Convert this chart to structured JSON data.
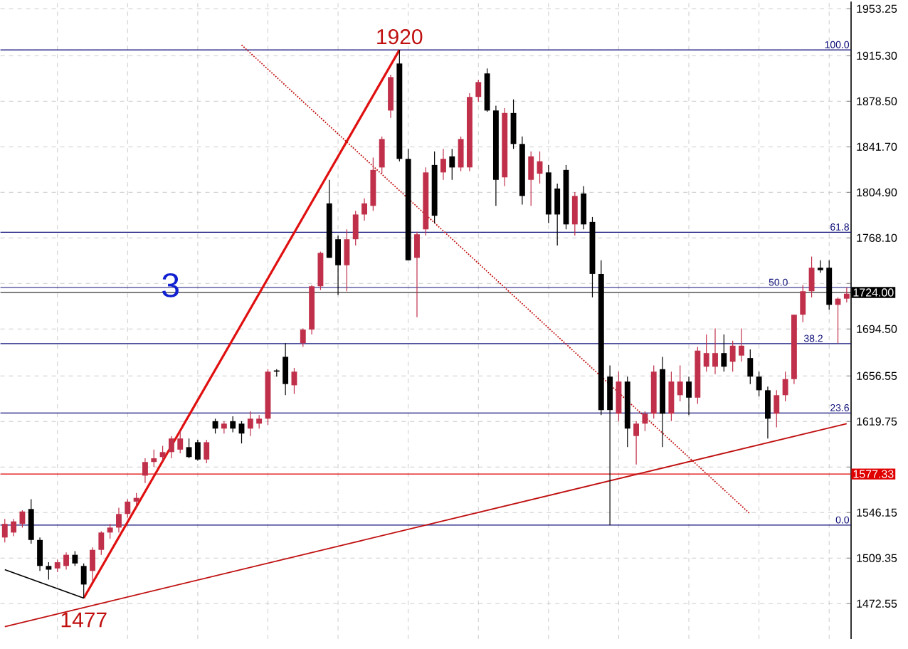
{
  "chart_data": {
    "type": "candlestick",
    "categories": [
      null,
      null,
      null,
      null,
      null,
      null,
      null,
      null,
      null,
      null,
      null,
      null,
      null,
      null,
      null,
      null,
      null,
      null,
      null,
      null,
      null,
      null,
      null,
      null,
      null,
      null,
      null,
      null,
      null,
      null,
      null,
      null,
      null,
      null,
      null,
      null,
      null,
      null,
      null,
      null,
      null,
      null,
      null,
      null,
      null,
      null,
      null,
      null,
      null,
      null,
      null,
      null,
      null,
      null,
      null,
      null,
      null,
      null,
      null,
      null,
      null,
      null,
      null,
      null,
      null,
      null,
      null,
      null,
      null,
      null,
      null,
      null,
      null,
      null,
      null,
      null,
      null,
      null,
      null,
      null,
      null,
      null,
      null,
      null,
      null,
      null,
      null,
      null,
      null,
      null,
      null,
      null,
      null,
      null,
      null,
      null,
      null
    ],
    "ohlc": [
      [
        1526,
        1541,
        1522,
        1537
      ],
      [
        1530,
        1541,
        1527,
        1539
      ],
      [
        1537,
        1548,
        1534,
        1547
      ],
      [
        1549,
        1557,
        1521,
        1524
      ],
      [
        1524,
        1526,
        1499,
        1503
      ],
      [
        1503,
        1506,
        1492,
        1500
      ],
      [
        1501,
        1508,
        1498,
        1506
      ],
      [
        1503,
        1514,
        1500,
        1512
      ],
      [
        1512,
        1515,
        1503,
        1505
      ],
      [
        1503,
        1505,
        1477,
        1488
      ],
      [
        1499,
        1518,
        1490,
        1516
      ],
      [
        1516,
        1531,
        1512,
        1530
      ],
      [
        1530,
        1537,
        1525,
        1534
      ],
      [
        1534,
        1550,
        1530,
        1545
      ],
      [
        1545,
        1557,
        1542,
        1555
      ],
      [
        1555,
        1562,
        1550,
        1558
      ],
      [
        1576,
        1590,
        1570,
        1587
      ],
      [
        1587,
        1597,
        1583,
        1590
      ],
      [
        1591,
        1600,
        1588,
        1595
      ],
      [
        1595,
        1608,
        1590,
        1606
      ],
      [
        1597,
        1612,
        1594,
        1606
      ],
      [
        1599,
        1606,
        1590,
        1591
      ],
      [
        1603,
        1605,
        1588,
        1589
      ],
      [
        1589,
        1605,
        1586,
        1603
      ],
      [
        1620,
        1622,
        1610,
        1614
      ],
      [
        1614,
        1620,
        1610,
        1618
      ],
      [
        1620,
        1624,
        1611,
        1614
      ],
      [
        1618,
        1620,
        1602,
        1610
      ],
      [
        1614,
        1628,
        1608,
        1622
      ],
      [
        1618,
        1625,
        1614,
        1622
      ],
      [
        1622,
        1662,
        1617,
        1660
      ],
      [
        1661,
        1662,
        1656,
        1660
      ],
      [
        1672,
        1683,
        1641,
        1650
      ],
      [
        1649,
        1663,
        1642,
        1660
      ],
      [
        1683,
        1695,
        1680,
        1694
      ],
      [
        1694,
        1730,
        1690,
        1729
      ],
      [
        1729,
        1757,
        1726,
        1756
      ],
      [
        1796,
        1815,
        1752,
        1752
      ],
      [
        1767,
        1770,
        1722,
        1746
      ],
      [
        1746,
        1775,
        1725,
        1767
      ],
      [
        1767,
        1790,
        1762,
        1787
      ],
      [
        1787,
        1800,
        1782,
        1796
      ],
      [
        1794,
        1833,
        1790,
        1823
      ],
      [
        1825,
        1850,
        1820,
        1848
      ],
      [
        1871,
        1900,
        1865,
        1898
      ],
      [
        1909,
        1920,
        1830,
        1832
      ],
      [
        1832,
        1840,
        1750,
        1750
      ],
      [
        1752,
        1773,
        1704,
        1771
      ],
      [
        1775,
        1825,
        1770,
        1821
      ],
      [
        1827,
        1838,
        1780,
        1786
      ],
      [
        1821,
        1840,
        1815,
        1832
      ],
      [
        1834,
        1840,
        1815,
        1825
      ],
      [
        1825,
        1850,
        1822,
        1848
      ],
      [
        1825,
        1885,
        1822,
        1882
      ],
      [
        1882,
        1896,
        1878,
        1894
      ],
      [
        1901,
        1905,
        1870,
        1871
      ],
      [
        1871,
        1875,
        1794,
        1815
      ],
      [
        1817,
        1873,
        1810,
        1869
      ],
      [
        1869,
        1880,
        1840,
        1844
      ],
      [
        1844,
        1850,
        1795,
        1802
      ],
      [
        1815,
        1838,
        1794,
        1834
      ],
      [
        1820,
        1838,
        1812,
        1830
      ],
      [
        1821,
        1827,
        1780,
        1787
      ],
      [
        1808,
        1812,
        1762,
        1787
      ],
      [
        1823,
        1827,
        1775,
        1779
      ],
      [
        1779,
        1805,
        1770,
        1802
      ],
      [
        1804,
        1810,
        1775,
        1779
      ],
      [
        1781,
        1785,
        1720,
        1739
      ],
      [
        1739,
        1750,
        1625,
        1629
      ],
      [
        1656,
        1665,
        1536,
        1629
      ],
      [
        1626,
        1660,
        1620,
        1652
      ],
      [
        1652,
        1656,
        1599,
        1614
      ],
      [
        1608,
        1620,
        1585,
        1618
      ],
      [
        1618,
        1628,
        1612,
        1626
      ],
      [
        1626,
        1665,
        1622,
        1660
      ],
      [
        1662,
        1672,
        1599,
        1626
      ],
      [
        1626,
        1660,
        1620,
        1652
      ],
      [
        1641,
        1665,
        1636,
        1652
      ],
      [
        1652,
        1656,
        1625,
        1639
      ],
      [
        1639,
        1680,
        1634,
        1677
      ],
      [
        1664,
        1690,
        1660,
        1675
      ],
      [
        1664,
        1695,
        1658,
        1675
      ],
      [
        1675,
        1690,
        1660,
        1664
      ],
      [
        1668,
        1685,
        1660,
        1681
      ],
      [
        1673,
        1695,
        1668,
        1681
      ],
      [
        1671,
        1678,
        1650,
        1656
      ],
      [
        1656,
        1660,
        1640,
        1645
      ],
      [
        1645,
        1648,
        1606,
        1622
      ],
      [
        1626,
        1645,
        1615,
        1641
      ],
      [
        1641,
        1660,
        1636,
        1654
      ],
      [
        1654,
        1706,
        1650,
        1706
      ],
      [
        1706,
        1730,
        1700,
        1725
      ],
      [
        1725,
        1753,
        1720,
        1744
      ],
      [
        1744,
        1750,
        1740,
        1742
      ],
      [
        1744,
        1750,
        1710,
        1714
      ],
      [
        1714,
        1720,
        1683,
        1719
      ],
      [
        1719,
        1728,
        1716,
        1723
      ]
    ],
    "series": [
      {
        "type": "line",
        "color": "#e01010",
        "line_style": "solid",
        "values": [
          null,
          null,
          null,
          null,
          null,
          null,
          null,
          null,
          null,
          1477,
          null,
          null,
          null,
          null,
          null,
          null,
          null,
          null,
          null,
          null,
          null,
          null,
          null,
          null,
          null,
          null,
          null,
          null,
          null,
          null,
          null,
          null,
          null,
          null,
          null,
          null,
          null,
          null,
          null,
          null,
          null,
          null,
          null,
          null,
          null,
          1920,
          null,
          null,
          null,
          null,
          null,
          null,
          null,
          null,
          null,
          null,
          null,
          null,
          null,
          null,
          null,
          null,
          null,
          null,
          null,
          null,
          null,
          null,
          null,
          null,
          null,
          null,
          null,
          null,
          null,
          null,
          null,
          null,
          null,
          null,
          null,
          null,
          null,
          null,
          null,
          null,
          null,
          null,
          null,
          null,
          null,
          null,
          null,
          null,
          null,
          null,
          null
        ]
      },
      {
        "type": "line",
        "color": "#c01010",
        "line_style": "solid",
        "values": [
          1454,
          null,
          null,
          null,
          null,
          null,
          null,
          null,
          null,
          null,
          null,
          null,
          null,
          null,
          null,
          null,
          null,
          null,
          null,
          null,
          null,
          null,
          null,
          null,
          null,
          null,
          null,
          null,
          null,
          null,
          null,
          null,
          null,
          null,
          null,
          null,
          null,
          null,
          null,
          null,
          null,
          null,
          null,
          null,
          null,
          null,
          null,
          null,
          null,
          null,
          null,
          null,
          null,
          null,
          null,
          null,
          null,
          null,
          null,
          null,
          null,
          null,
          null,
          null,
          null,
          null,
          null,
          null,
          null,
          null,
          null,
          null,
          null,
          null,
          null,
          null,
          null,
          null,
          null,
          null,
          null,
          null,
          null,
          null,
          null,
          null,
          null,
          null,
          null,
          null,
          null,
          null,
          null,
          null,
          null,
          null,
          1618
        ]
      },
      {
        "type": "line",
        "color": "#000000",
        "line_style": "solid",
        "values": [
          1500,
          null,
          null,
          null,
          null,
          null,
          null,
          null,
          null,
          1477,
          null,
          null,
          null,
          null,
          null,
          null,
          null,
          null,
          null,
          null,
          null,
          null,
          null,
          null,
          null,
          null,
          null,
          null,
          null,
          null,
          null,
          null,
          null,
          null,
          null,
          null,
          null,
          null,
          null,
          null,
          null,
          null,
          null,
          null,
          null,
          null,
          null,
          null,
          null,
          null,
          null,
          null,
          null,
          null,
          null,
          null,
          null,
          null,
          null,
          null,
          null,
          null,
          null,
          null,
          null,
          null,
          null,
          null,
          null,
          null,
          null,
          null,
          null,
          null,
          null,
          null,
          null,
          null,
          null,
          null,
          null,
          null,
          null,
          null,
          null,
          null,
          null,
          null,
          null,
          null,
          null,
          null,
          null,
          null,
          null,
          null,
          null
        ]
      },
      {
        "type": "line",
        "color": "#c01010",
        "line_style": "dotted",
        "values": [
          null,
          null,
          null,
          null,
          null,
          null,
          null,
          null,
          null,
          null,
          null,
          null,
          null,
          null,
          null,
          null,
          null,
          null,
          null,
          null,
          null,
          null,
          null,
          null,
          null,
          null,
          null,
          1924,
          null,
          null,
          null,
          null,
          null,
          null,
          null,
          null,
          null,
          null,
          null,
          null,
          null,
          null,
          null,
          null,
          null,
          null,
          null,
          null,
          null,
          null,
          null,
          null,
          null,
          null,
          null,
          null,
          null,
          null,
          null,
          null,
          null,
          null,
          null,
          null,
          null,
          null,
          null,
          null,
          null,
          null,
          null,
          null,
          null,
          null,
          null,
          null,
          null,
          null,
          null,
          null,
          null,
          null,
          null,
          null,
          null,
          1545,
          null,
          null,
          null,
          null,
          null,
          null,
          null,
          null,
          null,
          null,
          null
        ]
      }
    ],
    "ylim": [
      1444,
      1959
    ],
    "yticks": [
      {
        "value": 1953.25,
        "label": "1953.25"
      },
      {
        "value": 1915.3,
        "label": "1915.30"
      },
      {
        "value": 1878.5,
        "label": "1878.50"
      },
      {
        "value": 1841.7,
        "label": "1841.70"
      },
      {
        "value": 1804.9,
        "label": "1804.90"
      },
      {
        "value": 1768.1,
        "label": "1768.10"
      },
      {
        "value": 1731.3,
        "label": null
      },
      {
        "value": 1694.5,
        "label": "1694.50"
      },
      {
        "value": 1656.55,
        "label": "1656.55"
      },
      {
        "value": 1619.75,
        "label": "1619.75"
      },
      {
        "value": 1582.95,
        "label": null
      },
      {
        "value": 1546.15,
        "label": "1546.15"
      },
      {
        "value": 1509.35,
        "label": "1509.35"
      },
      {
        "value": 1472.55,
        "label": "1472.55"
      }
    ],
    "tick_labels": "y",
    "grid": true,
    "ref_lines": [
      {
        "axis": "y",
        "value": 1920
      },
      {
        "axis": "y",
        "value": 1772.7
      },
      {
        "axis": "y",
        "value": 1728
      },
      {
        "axis": "y",
        "value": 1682.7
      },
      {
        "axis": "y",
        "value": 1626.6
      },
      {
        "axis": "y",
        "value": 1536
      },
      {
        "axis": "y",
        "value": 1724,
        "label": "1724.00",
        "color": "#000000"
      },
      {
        "axis": "y",
        "value": 1577.33,
        "label": "1577.33",
        "color": "#e00000"
      }
    ],
    "annotations": [
      {
        "text": "100.0",
        "y": 1920
      },
      {
        "text": "61.8",
        "y": 1772.7
      },
      {
        "text": "50.0",
        "y": 1728
      },
      {
        "text": "38.2",
        "y": 1682.7
      },
      {
        "text": "23.6",
        "y": 1626.6
      },
      {
        "text": "0.0",
        "y": 1536
      },
      "1920",
      "1477",
      "3"
    ]
  }
}
